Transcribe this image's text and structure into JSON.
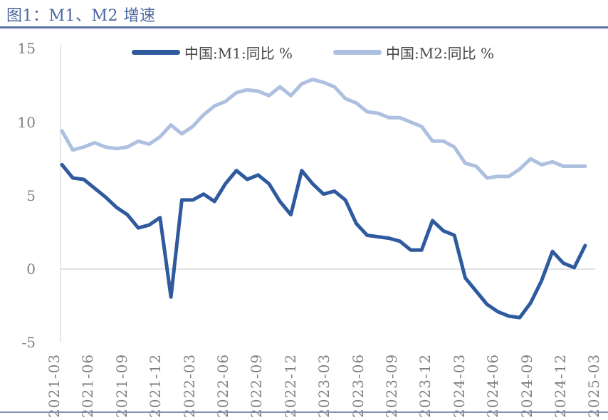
{
  "title": "图1：M1、M2 增速",
  "colors": {
    "m1_line": "#2F5A9E",
    "m2_line": "#ADC0E0",
    "title_text": "#4A679F",
    "title_rule": "#5C72A6",
    "bottom_rule": "#8392B4",
    "axis_gray": "#D9D9D9",
    "tick_text": "#7F7F7F",
    "legend_text": "#454545"
  },
  "chart_data": {
    "type": "line",
    "title": "图1：M1、M2 增速",
    "xlabel": "",
    "ylabel": "",
    "ylim": [
      -5,
      15
    ],
    "yticks": [
      15,
      10,
      5,
      0,
      -5
    ],
    "legend_position": "top",
    "gridlines": "zero-line-only",
    "x": [
      "2021-03",
      "2021-04",
      "2021-05",
      "2021-06",
      "2021-07",
      "2021-08",
      "2021-09",
      "2021-10",
      "2021-11",
      "2021-12",
      "2022-01",
      "2022-02",
      "2022-03",
      "2022-04",
      "2022-05",
      "2022-06",
      "2022-07",
      "2022-08",
      "2022-09",
      "2022-10",
      "2022-11",
      "2022-12",
      "2023-01",
      "2023-02",
      "2023-03",
      "2023-04",
      "2023-05",
      "2023-06",
      "2023-07",
      "2023-08",
      "2023-09",
      "2023-10",
      "2023-11",
      "2023-12",
      "2024-01",
      "2024-02",
      "2024-03",
      "2024-04",
      "2024-05",
      "2024-06",
      "2024-07",
      "2024-08",
      "2024-09",
      "2024-10",
      "2024-11",
      "2024-12",
      "2025-01",
      "2025-02",
      "2025-03"
    ],
    "xticks": [
      "2021-03",
      "2021-06",
      "2021-09",
      "2021-12",
      "2022-03",
      "2022-06",
      "2022-09",
      "2022-12",
      "2023-03",
      "2023-06",
      "2023-09",
      "2023-12",
      "2024-03",
      "2024-06",
      "2024-09",
      "2024-12",
      "2025-03"
    ],
    "series": [
      {
        "name": "中国:M1:同比 %",
        "color": "#2F5A9E",
        "values": [
          7.1,
          6.2,
          6.1,
          5.5,
          4.9,
          4.2,
          3.7,
          2.8,
          3.0,
          3.5,
          -1.9,
          4.7,
          4.7,
          5.1,
          4.6,
          5.8,
          6.7,
          6.1,
          6.4,
          5.8,
          4.6,
          3.7,
          6.7,
          5.8,
          5.1,
          5.3,
          4.7,
          3.1,
          2.3,
          2.2,
          2.1,
          1.9,
          1.3,
          1.3,
          3.3,
          2.6,
          2.3,
          -0.6,
          -1.5,
          -2.4,
          -2.9,
          -3.2,
          -3.3,
          -2.3,
          -0.8,
          1.2,
          0.4,
          0.1,
          1.6
        ]
      },
      {
        "name": "中国:M2:同比 %",
        "color": "#ADC0E0",
        "values": [
          9.4,
          8.1,
          8.3,
          8.6,
          8.3,
          8.2,
          8.3,
          8.7,
          8.5,
          9.0,
          9.8,
          9.2,
          9.7,
          10.5,
          11.1,
          11.4,
          12.0,
          12.2,
          12.1,
          11.8,
          12.4,
          11.8,
          12.6,
          12.9,
          12.7,
          12.4,
          11.6,
          11.3,
          10.7,
          10.6,
          10.3,
          10.3,
          10.0,
          9.7,
          8.7,
          8.7,
          8.3,
          7.2,
          7.0,
          6.2,
          6.3,
          6.3,
          6.8,
          7.5,
          7.1,
          7.3,
          7.0,
          7.0,
          7.0
        ]
      }
    ]
  }
}
